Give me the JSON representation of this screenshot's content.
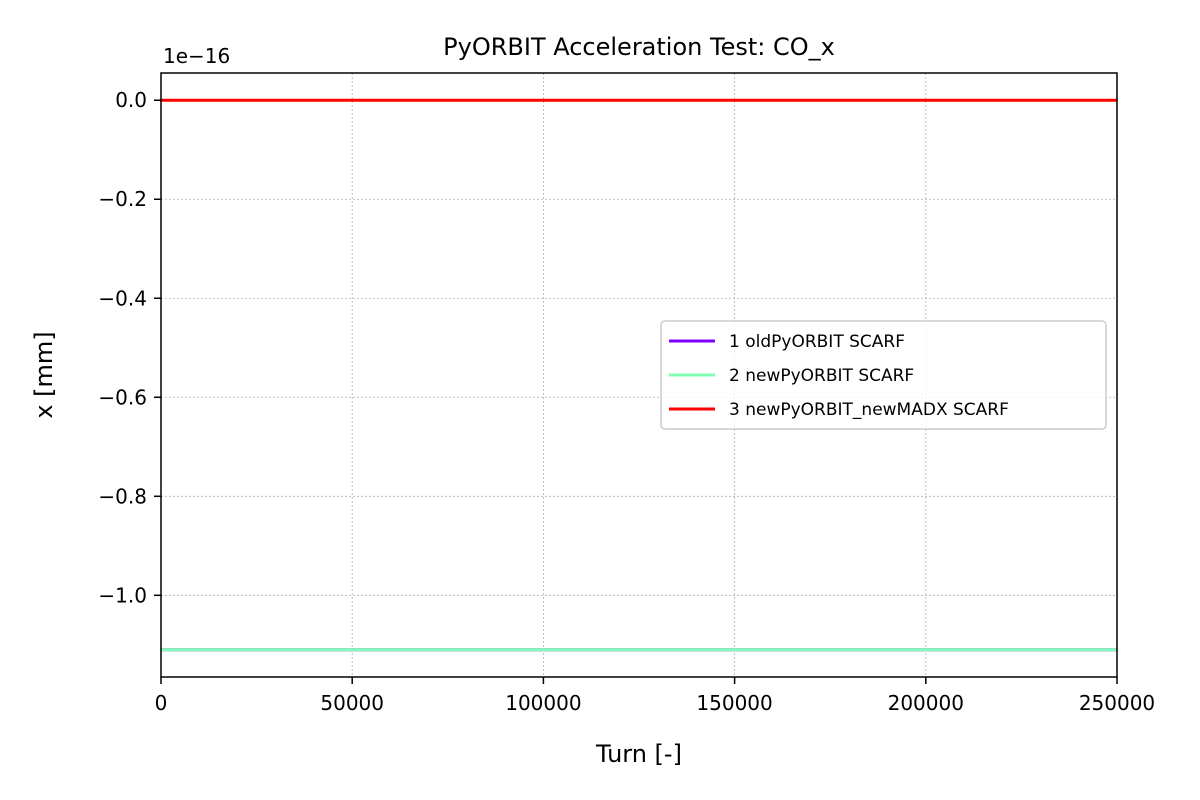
{
  "chart_data": {
    "type": "line",
    "title": "PyORBIT Acceleration Test: CO_x",
    "xlabel": "Turn [-]",
    "ylabel": "x [mm]",
    "y_offset_label": "1e−16",
    "xlim": [
      0,
      250000
    ],
    "ylim": [
      -1.165,
      0.055
    ],
    "y_scale_factor": 1e-16,
    "xticks": [
      0,
      50000,
      100000,
      150000,
      200000,
      250000
    ],
    "xtick_labels": [
      "0",
      "50000",
      "100000",
      "150000",
      "200000",
      "250000"
    ],
    "yticks": [
      0.0,
      -0.2,
      -0.4,
      -0.6,
      -0.8,
      -1.0
    ],
    "ytick_labels": [
      "0.0",
      "−0.2",
      "−0.4",
      "−0.6",
      "−0.8",
      "−1.0"
    ],
    "grid": true,
    "legend_position": "center-right",
    "series": [
      {
        "name": "1 oldPyORBIT SCARF",
        "color": "#8000ff",
        "x": [
          0,
          250000
        ],
        "y": [
          -1.11,
          -1.11
        ]
      },
      {
        "name": "2 newPyORBIT SCARF",
        "color": "#80ffb4",
        "x": [
          0,
          250000
        ],
        "y": [
          -1.11,
          -1.11
        ]
      },
      {
        "name": "3 newPyORBIT_newMADX SCARF",
        "color": "#ff0000",
        "x": [
          0,
          250000
        ],
        "y": [
          0.0,
          0.0
        ]
      }
    ]
  }
}
